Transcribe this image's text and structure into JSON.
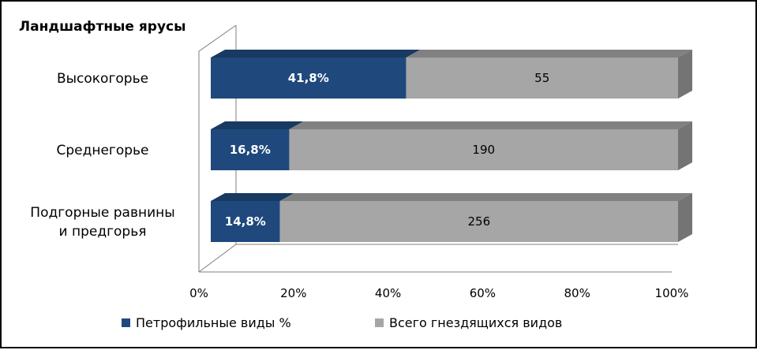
{
  "chart_data": {
    "type": "bar",
    "orientation": "horizontal",
    "stacked": "percent",
    "three_d": true,
    "y_axis_title": "Ландшафтные ярусы",
    "categories": [
      [
        "Высокогорье"
      ],
      [
        "Среднегорье"
      ],
      [
        "Подгорные равнины",
        "и предгорья"
      ]
    ],
    "series": [
      {
        "name": "Петрофильные виды %",
        "color": "#1f497d",
        "data_labels": [
          "41,8%",
          "16,8%",
          "14,8%"
        ],
        "shares": [
          0.418,
          0.168,
          0.148
        ]
      },
      {
        "name": "Всего гнездящихся видов",
        "color": "#a6a6a6",
        "data_labels": [
          "55",
          "190",
          "256"
        ],
        "shares": [
          0.582,
          0.832,
          0.852
        ]
      }
    ],
    "x_ticks": [
      "0%",
      "20%",
      "40%",
      "60%",
      "80%",
      "100%"
    ],
    "xlim": [
      0,
      100
    ],
    "legend_position": "bottom"
  }
}
